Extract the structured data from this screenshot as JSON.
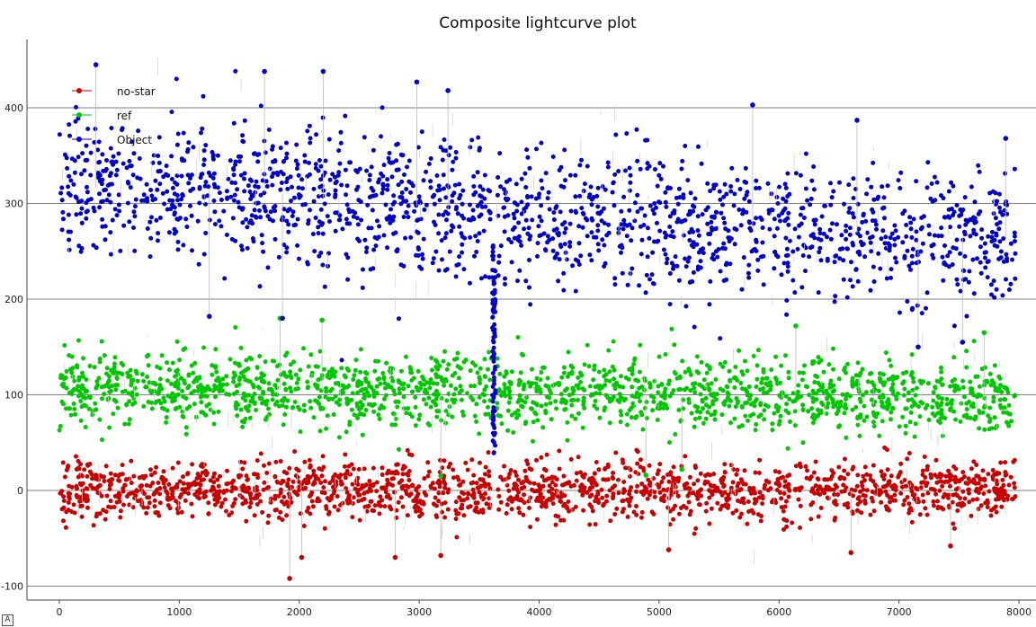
{
  "chart_data": {
    "type": "scatter",
    "title": "Composite lightcurve plot",
    "xlabel": "",
    "ylabel": "",
    "xlim": [
      -50,
      8050
    ],
    "ylim": [
      -115,
      470
    ],
    "x_ticks": [
      0,
      1000,
      2000,
      3000,
      4000,
      5000,
      6000,
      7000,
      8000
    ],
    "y_ticks": [
      -100,
      0,
      100,
      200,
      300,
      400
    ],
    "grid": "horizontal",
    "legend_position": "top-left",
    "gap": {
      "x_start": 3600,
      "x_end": 3640,
      "description_value_range": [
        30,
        260
      ]
    },
    "series": [
      {
        "name": "no-star",
        "color": "#c80000",
        "x_range": [
          0,
          7970
        ],
        "mean_trend": [
          [
            0,
            0
          ],
          [
            8000,
            0
          ]
        ],
        "spread": 15,
        "outliers": [
          [
            1920,
            -92
          ],
          [
            2020,
            -70
          ],
          [
            2800,
            -70
          ],
          [
            3180,
            -68
          ],
          [
            5080,
            -62
          ],
          [
            6600,
            -65
          ],
          [
            7430,
            -58
          ]
        ]
      },
      {
        "name": "ref",
        "color": "#00c800",
        "x_range": [
          0,
          7970
        ],
        "mean_trend": [
          [
            0,
            108
          ],
          [
            3600,
            103
          ],
          [
            3650,
            103
          ],
          [
            8000,
            96
          ]
        ],
        "spread": 18,
        "outliers": [
          [
            1840,
            180
          ],
          [
            2190,
            178
          ],
          [
            4890,
            16
          ],
          [
            3180,
            15
          ],
          [
            5190,
            22
          ],
          [
            6140,
            172
          ],
          [
            7710,
            165
          ]
        ]
      },
      {
        "name": "Object",
        "color": "#0000c8",
        "x_range": [
          0,
          7970
        ],
        "mean_trend": [
          [
            0,
            318
          ],
          [
            1700,
            312
          ],
          [
            3550,
            290
          ],
          [
            3640,
            285
          ],
          [
            4200,
            282
          ],
          [
            8000,
            262
          ]
        ],
        "spread": 35,
        "outliers": [
          [
            305,
            445
          ],
          [
            1710,
            438
          ],
          [
            2200,
            438
          ],
          [
            2980,
            427
          ],
          [
            3240,
            418
          ],
          [
            5780,
            403
          ],
          [
            6650,
            387
          ],
          [
            7890,
            368
          ],
          [
            1250,
            182
          ],
          [
            1860,
            180
          ],
          [
            7160,
            150
          ],
          [
            7530,
            155
          ]
        ]
      }
    ]
  },
  "corner_badge": "A"
}
